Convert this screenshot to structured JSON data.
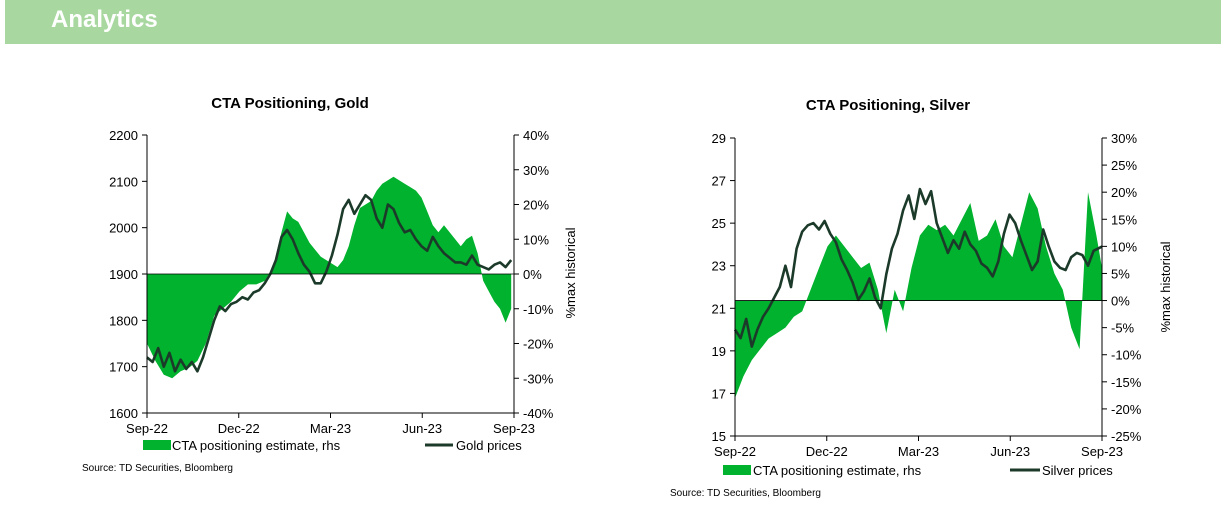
{
  "header": {
    "title": "Analytics"
  },
  "colors": {
    "banner": "#a8d8a0",
    "positioning": "#00b22d",
    "price": "#1c3a2a"
  },
  "chart_data": [
    {
      "type": "line",
      "title": "CTA Positioning, Gold",
      "x_tick_labels": [
        "Sep-22",
        "Dec-22",
        "Mar-23",
        "Jun-23",
        "Sep-23"
      ],
      "y_left": {
        "ylim": [
          1600,
          2200
        ],
        "ticks": [
          "2200",
          "2100",
          "2000",
          "1900",
          "1800",
          "1700",
          "1600"
        ]
      },
      "y_right": {
        "label": "%max historical",
        "ylim": [
          -40,
          40
        ],
        "ticks": [
          "40%",
          "30%",
          "20%",
          "10%",
          "0%",
          "-10%",
          "-20%",
          "-30%",
          "-40%"
        ]
      },
      "legend": {
        "area": "CTA positioning estimate, rhs",
        "line": "Gold prices"
      },
      "source": "Source: TD Securities, Bloomberg",
      "series": [
        {
          "name": "CTA positioning estimate, rhs",
          "kind": "area",
          "axis": "right",
          "points": [
            [
              0,
              -20
            ],
            [
              3,
              -25
            ],
            [
              6,
              -29
            ],
            [
              9,
              -30
            ],
            [
              12,
              -28
            ],
            [
              15,
              -27
            ],
            [
              18,
              -25
            ],
            [
              21,
              -20
            ],
            [
              24,
              -12
            ],
            [
              27,
              -10
            ],
            [
              30,
              -8
            ],
            [
              33,
              -5
            ],
            [
              36,
              -3
            ],
            [
              39,
              -3
            ],
            [
              42,
              -2
            ],
            [
              45,
              2
            ],
            [
              48,
              12
            ],
            [
              50,
              18
            ],
            [
              52,
              16
            ],
            [
              54,
              15
            ],
            [
              56,
              12
            ],
            [
              58,
              9
            ],
            [
              60,
              7
            ],
            [
              62,
              5
            ],
            [
              64,
              4
            ],
            [
              66,
              3
            ],
            [
              68,
              2
            ],
            [
              70,
              4
            ],
            [
              72,
              8
            ],
            [
              74,
              14
            ],
            [
              76,
              19
            ],
            [
              78,
              20
            ],
            [
              80,
              21
            ],
            [
              82,
              24
            ],
            [
              84,
              26
            ],
            [
              86,
              27
            ],
            [
              88,
              28
            ],
            [
              90,
              27
            ],
            [
              92,
              26
            ],
            [
              94,
              25
            ],
            [
              96,
              24
            ],
            [
              98,
              22
            ],
            [
              100,
              18
            ],
            [
              102,
              14
            ],
            [
              104,
              12
            ],
            [
              106,
              14
            ],
            [
              108,
              12
            ],
            [
              110,
              10
            ],
            [
              112,
              8
            ],
            [
              114,
              10
            ],
            [
              116,
              11
            ],
            [
              118,
              6
            ],
            [
              120,
              -2
            ],
            [
              122,
              -5
            ],
            [
              124,
              -8
            ],
            [
              126,
              -10
            ],
            [
              128,
              -14
            ],
            [
              130,
              -10
            ]
          ]
        },
        {
          "name": "Gold prices",
          "kind": "line",
          "axis": "left",
          "points": [
            [
              0,
              1720
            ],
            [
              2,
              1710
            ],
            [
              4,
              1740
            ],
            [
              6,
              1700
            ],
            [
              8,
              1730
            ],
            [
              10,
              1690
            ],
            [
              12,
              1715
            ],
            [
              14,
              1695
            ],
            [
              16,
              1710
            ],
            [
              18,
              1690
            ],
            [
              20,
              1720
            ],
            [
              22,
              1760
            ],
            [
              24,
              1800
            ],
            [
              26,
              1830
            ],
            [
              28,
              1820
            ],
            [
              30,
              1835
            ],
            [
              32,
              1840
            ],
            [
              34,
              1850
            ],
            [
              36,
              1845
            ],
            [
              38,
              1860
            ],
            [
              40,
              1865
            ],
            [
              42,
              1880
            ],
            [
              44,
              1900
            ],
            [
              46,
              1930
            ],
            [
              48,
              1980
            ],
            [
              50,
              1995
            ],
            [
              52,
              1975
            ],
            [
              54,
              1945
            ],
            [
              56,
              1920
            ],
            [
              58,
              1905
            ],
            [
              60,
              1880
            ],
            [
              62,
              1880
            ],
            [
              64,
              1905
            ],
            [
              66,
              1940
            ],
            [
              68,
              1985
            ],
            [
              70,
              2040
            ],
            [
              72,
              2060
            ],
            [
              74,
              2030
            ],
            [
              76,
              2050
            ],
            [
              78,
              2070
            ],
            [
              80,
              2060
            ],
            [
              82,
              2020
            ],
            [
              84,
              2000
            ],
            [
              86,
              2050
            ],
            [
              88,
              2040
            ],
            [
              90,
              2010
            ],
            [
              92,
              1990
            ],
            [
              94,
              1995
            ],
            [
              96,
              1975
            ],
            [
              98,
              1960
            ],
            [
              100,
              1950
            ],
            [
              102,
              1980
            ],
            [
              104,
              1960
            ],
            [
              106,
              1945
            ],
            [
              108,
              1935
            ],
            [
              110,
              1925
            ],
            [
              112,
              1925
            ],
            [
              114,
              1920
            ],
            [
              116,
              1940
            ],
            [
              118,
              1920
            ],
            [
              120,
              1915
            ],
            [
              122,
              1910
            ],
            [
              124,
              1920
            ],
            [
              126,
              1925
            ],
            [
              128,
              1915
            ],
            [
              130,
              1930
            ]
          ]
        }
      ]
    },
    {
      "type": "line",
      "title": "CTA Positioning, Silver",
      "x_tick_labels": [
        "Sep-22",
        "Dec-22",
        "Mar-23",
        "Jun-23",
        "Sep-23"
      ],
      "y_left": {
        "ylim": [
          15,
          29
        ],
        "ticks": [
          "29",
          "27",
          "25",
          "23",
          "21",
          "19",
          "17",
          "15"
        ]
      },
      "y_right": {
        "label": "%max historical",
        "ylim": [
          -25,
          30
        ],
        "ticks": [
          "30%",
          "25%",
          "20%",
          "15%",
          "10%",
          "5%",
          "0%",
          "-5%",
          "-10%",
          "-15%",
          "-20%",
          "-25%"
        ]
      },
      "legend": {
        "area": "CTA positioning estimate, rhs",
        "line": "Silver prices"
      },
      "source": "Source: TD Securities, Bloomberg",
      "series": [
        {
          "name": "CTA positioning estimate, rhs",
          "kind": "area",
          "axis": "right",
          "points": [
            [
              0,
              -18
            ],
            [
              3,
              -14
            ],
            [
              6,
              -11
            ],
            [
              9,
              -9
            ],
            [
              12,
              -7
            ],
            [
              15,
              -6
            ],
            [
              18,
              -5
            ],
            [
              21,
              -3
            ],
            [
              24,
              -2
            ],
            [
              27,
              2
            ],
            [
              30,
              6
            ],
            [
              33,
              10
            ],
            [
              36,
              12
            ],
            [
              39,
              10
            ],
            [
              42,
              8
            ],
            [
              45,
              6
            ],
            [
              48,
              7
            ],
            [
              51,
              2
            ],
            [
              54,
              -6
            ],
            [
              57,
              2
            ],
            [
              60,
              -2
            ],
            [
              63,
              6
            ],
            [
              66,
              12
            ],
            [
              69,
              14
            ],
            [
              72,
              13
            ],
            [
              75,
              14
            ],
            [
              78,
              12
            ],
            [
              81,
              15
            ],
            [
              84,
              18
            ],
            [
              87,
              11
            ],
            [
              90,
              12
            ],
            [
              93,
              15
            ],
            [
              96,
              10
            ],
            [
              99,
              8
            ],
            [
              102,
              14
            ],
            [
              105,
              20
            ],
            [
              108,
              17
            ],
            [
              111,
              10
            ],
            [
              114,
              5
            ],
            [
              117,
              2
            ],
            [
              120,
              -5
            ],
            [
              123,
              -9
            ],
            [
              126,
              20
            ],
            [
              129,
              12
            ],
            [
              131,
              6
            ]
          ]
        },
        {
          "name": "Silver prices",
          "kind": "line",
          "axis": "left",
          "points": [
            [
              0,
              20
            ],
            [
              2,
              19.6
            ],
            [
              4,
              20.5
            ],
            [
              6,
              19.2
            ],
            [
              8,
              20.0
            ],
            [
              10,
              20.6
            ],
            [
              12,
              21.0
            ],
            [
              14,
              21.5
            ],
            [
              16,
              22.0
            ],
            [
              18,
              23.0
            ],
            [
              20,
              22.0
            ],
            [
              22,
              23.8
            ],
            [
              24,
              24.6
            ],
            [
              26,
              24.9
            ],
            [
              28,
              25.0
            ],
            [
              30,
              24.7
            ],
            [
              32,
              25.1
            ],
            [
              34,
              24.5
            ],
            [
              36,
              24.1
            ],
            [
              38,
              23.3
            ],
            [
              40,
              22.8
            ],
            [
              42,
              22.2
            ],
            [
              44,
              21.4
            ],
            [
              46,
              21.8
            ],
            [
              48,
              22.4
            ],
            [
              50,
              21.5
            ],
            [
              52,
              21.0
            ],
            [
              54,
              22.6
            ],
            [
              56,
              23.8
            ],
            [
              58,
              24.5
            ],
            [
              60,
              25.6
            ],
            [
              62,
              26.3
            ],
            [
              64,
              25.2
            ],
            [
              66,
              26.6
            ],
            [
              68,
              25.9
            ],
            [
              70,
              26.5
            ],
            [
              72,
              25.0
            ],
            [
              74,
              24.3
            ],
            [
              76,
              23.6
            ],
            [
              78,
              24.2
            ],
            [
              80,
              23.8
            ],
            [
              82,
              24.6
            ],
            [
              84,
              24.0
            ],
            [
              86,
              23.7
            ],
            [
              88,
              23.1
            ],
            [
              90,
              22.9
            ],
            [
              92,
              22.5
            ],
            [
              94,
              23.2
            ],
            [
              96,
              24.5
            ],
            [
              98,
              25.4
            ],
            [
              100,
              25.0
            ],
            [
              102,
              24.2
            ],
            [
              104,
              23.5
            ],
            [
              106,
              22.8
            ],
            [
              108,
              23.2
            ],
            [
              110,
              24.7
            ],
            [
              112,
              23.9
            ],
            [
              114,
              23.2
            ],
            [
              116,
              22.9
            ],
            [
              118,
              22.8
            ],
            [
              120,
              23.4
            ],
            [
              122,
              23.6
            ],
            [
              124,
              23.5
            ],
            [
              126,
              23.0
            ],
            [
              128,
              23.7
            ],
            [
              131,
              23.9
            ]
          ]
        }
      ]
    }
  ]
}
